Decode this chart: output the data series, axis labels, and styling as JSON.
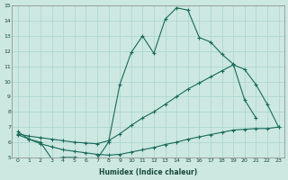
{
  "xlabel": "Humidex (Indice chaleur)",
  "bg_color": "#cce8e0",
  "line_color": "#1a6a5a",
  "grid_color": "#aad4cc",
  "xlim": [
    -0.5,
    23.5
  ],
  "ylim": [
    5,
    15
  ],
  "xticks": [
    0,
    1,
    2,
    3,
    4,
    5,
    6,
    7,
    8,
    9,
    10,
    11,
    12,
    13,
    14,
    15,
    16,
    17,
    18,
    19,
    20,
    21,
    22,
    23
  ],
  "yticks": [
    5,
    6,
    7,
    8,
    9,
    10,
    11,
    12,
    13,
    14,
    15
  ],
  "line1_x": [
    0,
    1,
    2,
    3,
    4,
    5,
    6,
    7,
    8,
    9,
    10,
    11,
    12,
    13,
    14,
    15,
    16,
    17,
    18,
    19,
    20,
    21
  ],
  "line1_y": [
    6.7,
    6.2,
    6.0,
    4.9,
    5.0,
    5.0,
    4.9,
    4.9,
    6.0,
    9.8,
    11.9,
    13.0,
    11.85,
    14.1,
    14.85,
    14.7,
    12.9,
    12.6,
    11.8,
    11.15,
    8.8,
    7.6
  ],
  "line2_x": [
    0,
    1,
    2,
    3,
    4,
    5,
    6,
    7,
    8,
    9,
    10,
    11,
    12,
    13,
    14,
    15,
    16,
    17,
    18,
    19,
    20,
    21,
    22,
    23
  ],
  "line2_y": [
    6.55,
    6.4,
    6.3,
    6.2,
    6.1,
    6.0,
    5.95,
    5.9,
    6.1,
    6.55,
    7.1,
    7.6,
    8.0,
    8.5,
    9.0,
    9.5,
    9.9,
    10.3,
    10.7,
    11.1,
    10.8,
    9.8,
    8.5,
    7.0
  ],
  "line3_x": [
    0,
    1,
    2,
    3,
    4,
    5,
    6,
    7,
    8,
    9,
    10,
    11,
    12,
    13,
    14,
    15,
    16,
    17,
    18,
    19,
    20,
    21,
    22,
    23
  ],
  "line3_y": [
    6.5,
    6.2,
    5.9,
    5.7,
    5.5,
    5.4,
    5.3,
    5.2,
    5.15,
    5.2,
    5.35,
    5.5,
    5.65,
    5.85,
    6.0,
    6.2,
    6.35,
    6.5,
    6.65,
    6.8,
    6.85,
    6.9,
    6.9,
    7.0
  ]
}
